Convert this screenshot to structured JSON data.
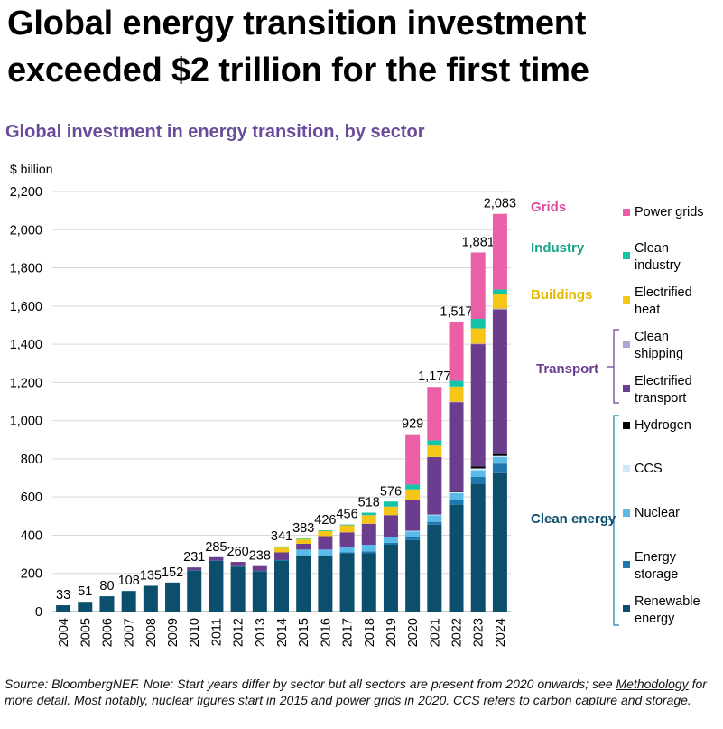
{
  "chart_data": {
    "type": "stacked_bar",
    "title": "Global energy transition investment exceeded $2 trillion for the first time",
    "subtitle": "Global investment in energy transition, by sector",
    "y_axis_label": "$ billion",
    "categories": [
      "2004",
      "2005",
      "2006",
      "2007",
      "2008",
      "2009",
      "2010",
      "2011",
      "2012",
      "2013",
      "2014",
      "2015",
      "2016",
      "2017",
      "2018",
      "2019",
      "2020",
      "2021",
      "2022",
      "2023",
      "2024"
    ],
    "series": [
      {
        "name": "Renewable energy",
        "color": "#0b4f6c",
        "values": [
          33,
          51,
          80,
          108,
          135,
          152,
          215,
          265,
          235,
          210,
          265,
          290,
          290,
          305,
          305,
          350,
          375,
          455,
          560,
          670,
          725
        ]
      },
      {
        "name": "Energy storage",
        "color": "#1f77b0",
        "values": [
          0,
          0,
          0,
          0,
          0,
          0,
          2,
          2,
          2,
          3,
          5,
          5,
          5,
          5,
          10,
          10,
          15,
          15,
          25,
          35,
          50
        ]
      },
      {
        "name": "Nuclear",
        "color": "#5bbbe8",
        "values": [
          0,
          0,
          0,
          0,
          0,
          0,
          0,
          0,
          0,
          0,
          0,
          30,
          30,
          30,
          35,
          30,
          30,
          35,
          35,
          35,
          35
        ]
      },
      {
        "name": "CCS",
        "color": "#cfeaf7",
        "values": [
          0,
          0,
          0,
          0,
          0,
          0,
          0,
          0,
          0,
          0,
          0,
          0,
          0,
          0,
          0,
          0,
          3,
          3,
          5,
          10,
          5
        ]
      },
      {
        "name": "Hydrogen",
        "color": "#000000",
        "values": [
          0,
          0,
          0,
          0,
          0,
          0,
          0,
          0,
          0,
          0,
          0,
          0,
          0,
          0,
          0,
          0,
          1,
          1,
          2,
          10,
          10
        ]
      },
      {
        "name": "Electrified transport",
        "color": "#6a3d8f",
        "values": [
          0,
          0,
          0,
          0,
          0,
          0,
          14,
          18,
          23,
          25,
          40,
          30,
          70,
          75,
          110,
          115,
          160,
          300,
          470,
          640,
          757
        ]
      },
      {
        "name": "Clean shipping",
        "color": "#b3a2d6",
        "values": [
          0,
          0,
          0,
          0,
          0,
          0,
          0,
          0,
          0,
          0,
          0,
          0,
          0,
          0,
          0,
          0,
          1,
          1,
          2,
          3,
          5
        ]
      },
      {
        "name": "Electrified heat",
        "color": "#f5c518",
        "values": [
          0,
          0,
          0,
          0,
          0,
          0,
          0,
          0,
          0,
          0,
          25,
          25,
          27,
          37,
          45,
          45,
          55,
          60,
          80,
          80,
          75
        ]
      },
      {
        "name": "Clean industry",
        "color": "#13c4a8",
        "values": [
          0,
          0,
          0,
          0,
          0,
          0,
          0,
          0,
          0,
          0,
          6,
          3,
          4,
          4,
          13,
          26,
          25,
          27,
          30,
          50,
          25
        ]
      },
      {
        "name": "Power grids",
        "color": "#ea5fa6",
        "values": [
          0,
          0,
          0,
          0,
          0,
          0,
          0,
          0,
          0,
          0,
          0,
          0,
          0,
          0,
          0,
          0,
          264,
          280,
          308,
          348,
          396
        ]
      }
    ],
    "totals": [
      33,
      51,
      80,
      108,
      135,
      152,
      231,
      285,
      260,
      238,
      341,
      383,
      426,
      456,
      518,
      576,
      929,
      1177,
      1517,
      1881,
      2083
    ],
    "value_labels": [
      "33",
      "51",
      "80",
      "108",
      "135",
      "152",
      "231",
      "285",
      "260",
      "238",
      "341",
      "383",
      "426",
      "456",
      "518",
      "576",
      "929",
      "1,177",
      "1,517",
      "1,881",
      "2,083"
    ],
    "legend_groups": [
      {
        "name": "Grids",
        "color": "#e0499a"
      },
      {
        "name": "Industry",
        "color": "#17a589"
      },
      {
        "name": "Buildings",
        "color": "#e6b800"
      },
      {
        "name": "Transport",
        "color": "#6a3d8f"
      },
      {
        "name": "Clean energy",
        "color": "#0b4f6c"
      }
    ],
    "ylim": [
      0,
      2200
    ],
    "yticks": [
      0,
      200,
      400,
      600,
      800,
      {
        "value": 1000,
        "label": "1,000"
      },
      {
        "value": 1200,
        "label": "1,200"
      },
      {
        "value": 1400,
        "label": "1,400"
      },
      {
        "value": 1600,
        "label": "1,600"
      },
      {
        "value": 1800,
        "label": "1,800"
      },
      {
        "value": 2000,
        "label": "2,000"
      },
      {
        "value": 2200,
        "label": "2,200"
      }
    ],
    "grid": true,
    "note": [
      "Source: BloombergNEF. Note: Start years differ by sector but all sectors are present from 2020 onwards; see ",
      "Methodology",
      " for more detail. Most notably, nuclear figures start in 2015 and power grids in 2020. CCS refers to carbon capture and storage."
    ]
  }
}
